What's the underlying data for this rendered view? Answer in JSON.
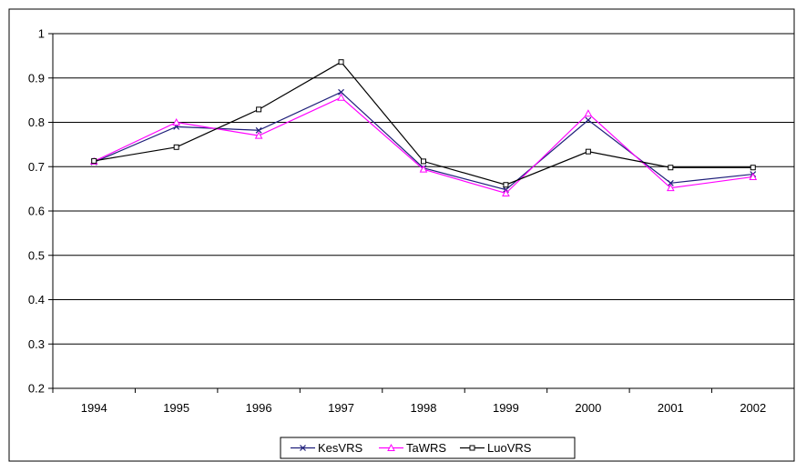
{
  "chart_data": {
    "type": "line",
    "categories": [
      "1994",
      "1995",
      "1996",
      "1997",
      "1998",
      "1999",
      "2000",
      "2001",
      "2002"
    ],
    "ylim": [
      0.2,
      1
    ],
    "yticks": [
      "0.2",
      "0.3",
      "0.4",
      "0.5",
      "0.6",
      "0.7",
      "0.8",
      "0.9",
      "1"
    ],
    "grid": true,
    "legend_position": "bottom",
    "series": [
      {
        "name": "KesVRS",
        "color": "#1f1f7a",
        "marker": "x",
        "values": [
          0.71,
          0.79,
          0.782,
          0.868,
          0.697,
          0.648,
          0.805,
          0.663,
          0.683
        ]
      },
      {
        "name": "TaWRS",
        "color": "#ff00ff",
        "marker": "triangle",
        "values": [
          0.712,
          0.8,
          0.77,
          0.856,
          0.694,
          0.64,
          0.82,
          0.652,
          0.677
        ]
      },
      {
        "name": "LuoVRS",
        "color": "#000000",
        "marker": "square",
        "values": [
          0.713,
          0.744,
          0.829,
          0.936,
          0.712,
          0.659,
          0.734,
          0.698,
          0.698
        ]
      }
    ]
  }
}
